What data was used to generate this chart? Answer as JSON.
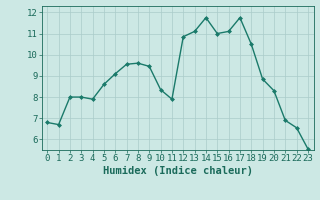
{
  "xlabel": "Humidex (Indice chaleur)",
  "x": [
    0,
    1,
    2,
    3,
    4,
    5,
    6,
    7,
    8,
    9,
    10,
    11,
    12,
    13,
    14,
    15,
    16,
    17,
    18,
    19,
    20,
    21,
    22,
    23
  ],
  "y": [
    6.8,
    6.7,
    8.0,
    8.0,
    7.9,
    8.6,
    9.1,
    9.55,
    9.6,
    9.45,
    8.35,
    7.9,
    10.85,
    11.1,
    11.75,
    11.0,
    11.1,
    11.75,
    10.5,
    8.85,
    8.3,
    6.9,
    6.55,
    5.55
  ],
  "line_color": "#1a7a6a",
  "marker": "D",
  "marker_size": 2.0,
  "bg_color": "#cce8e4",
  "grid_color": "#aaccca",
  "text_color": "#1a6a5a",
  "ylim": [
    5.5,
    12.3
  ],
  "yticks": [
    6,
    7,
    8,
    9,
    10,
    11,
    12
  ],
  "xticks": [
    0,
    1,
    2,
    3,
    4,
    5,
    6,
    7,
    8,
    9,
    10,
    11,
    12,
    13,
    14,
    15,
    16,
    17,
    18,
    19,
    20,
    21,
    22,
    23
  ],
  "xlabel_fontsize": 7.5,
  "tick_fontsize": 6.5,
  "line_width": 1.0
}
